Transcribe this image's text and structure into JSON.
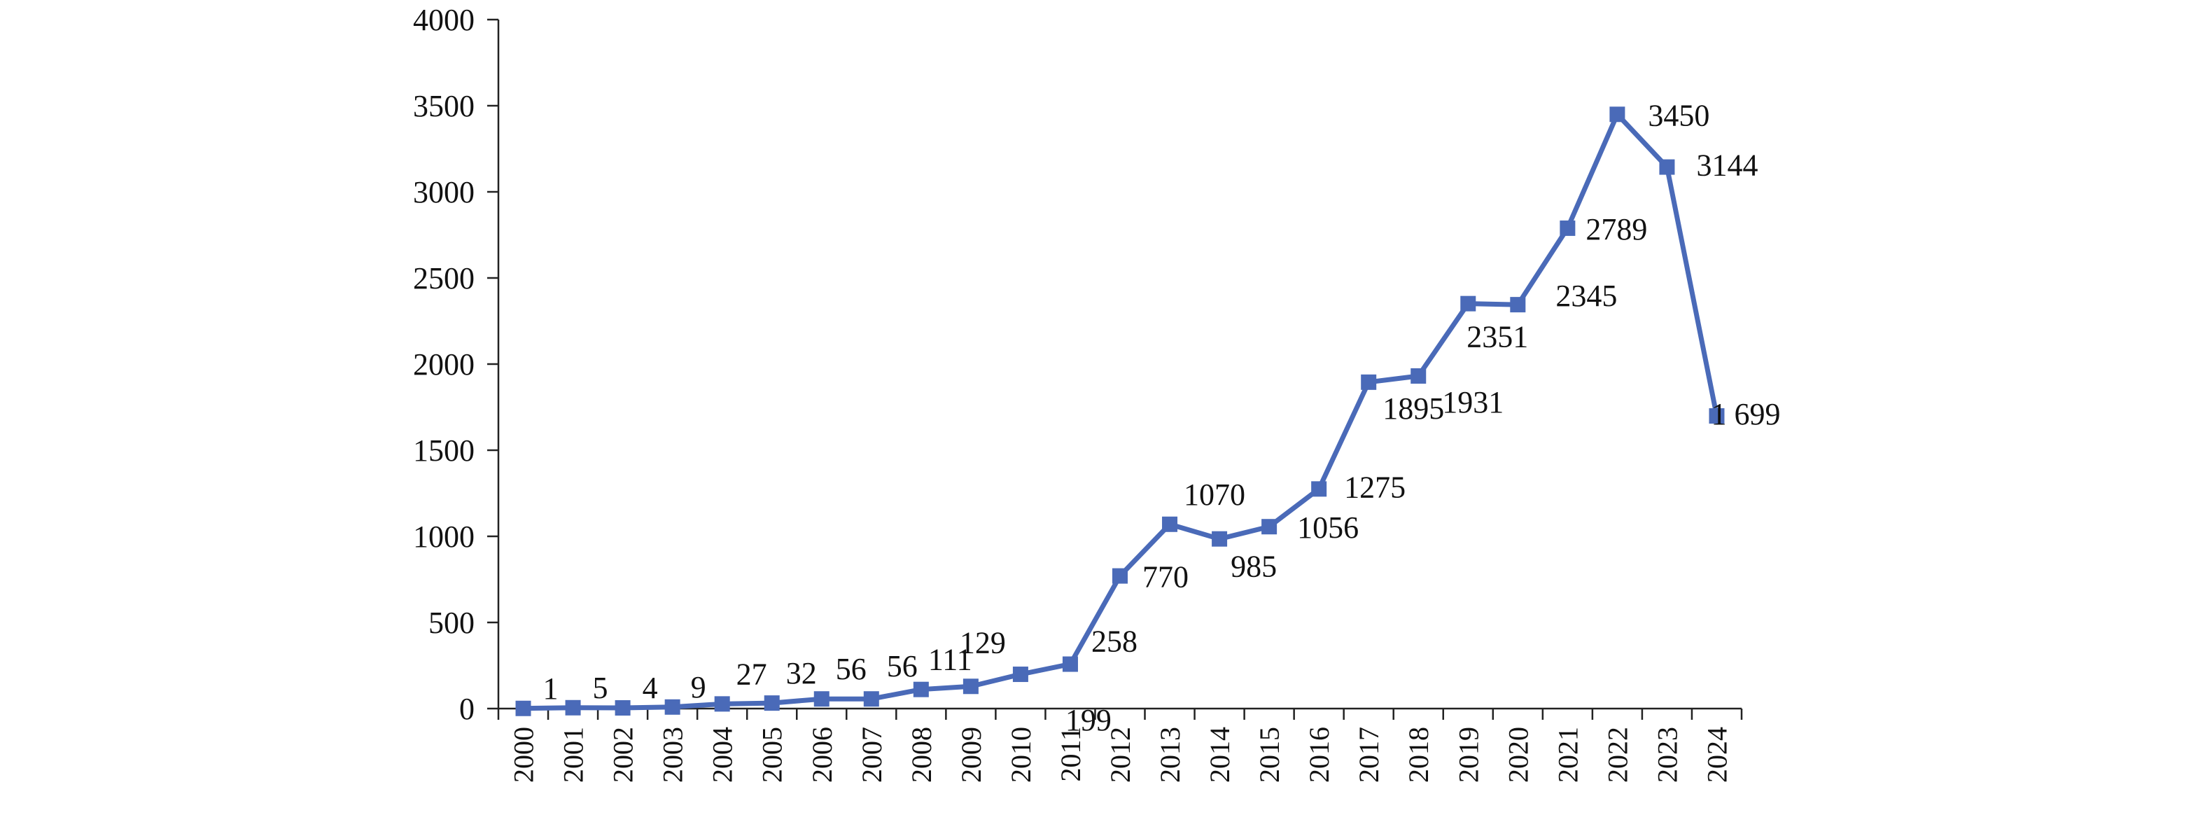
{
  "chart_data": {
    "type": "line",
    "title": "",
    "xlabel": "",
    "ylabel": "",
    "ylim": [
      0,
      4000
    ],
    "y_ticks": [
      "0",
      "500",
      "1000",
      "1500",
      "2000",
      "2500",
      "3000",
      "3500",
      "4000"
    ],
    "categories": [
      "2000",
      "2001",
      "2002",
      "2003",
      "2004",
      "2005",
      "2006",
      "2007",
      "2008",
      "2009",
      "2010",
      "2011",
      "2012",
      "2013",
      "2014",
      "2015",
      "2016",
      "2017",
      "2018",
      "2019",
      "2020",
      "2021",
      "2022",
      "2023",
      "2024"
    ],
    "series": [
      {
        "values": [
          1,
          5,
          4,
          9,
          27,
          32,
          56,
          56,
          111,
          129,
          199,
          258,
          770,
          1070,
          985,
          1056,
          1275,
          1895,
          1931,
          2351,
          2345,
          2789,
          3450,
          3144,
          1699
        ],
        "labels": [
          "1",
          "5",
          "4",
          "9",
          "27",
          "32",
          "56",
          "56",
          "111",
          "129",
          "199",
          "258",
          "770",
          "1070",
          "985",
          "1056",
          "1275",
          "1895",
          "1931",
          "2351",
          "2345",
          "2789",
          "3450",
          "3144",
          "1 699"
        ]
      }
    ],
    "grid": false,
    "legend": "none",
    "line_color": "#4A6AB8",
    "marker": "square"
  }
}
